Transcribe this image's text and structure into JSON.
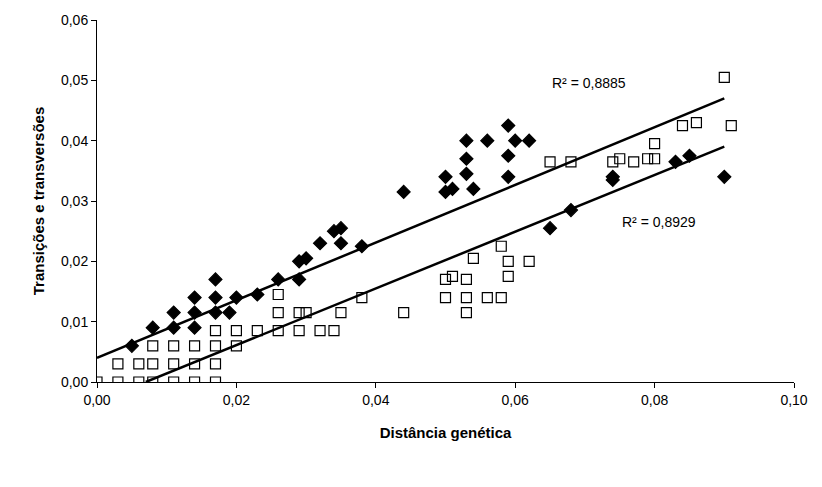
{
  "chart_data": {
    "type": "scatter",
    "x_label": "Distância genética",
    "y_label": "Transições e transversões",
    "xlim": [
      0,
      0.1
    ],
    "ylim": [
      0,
      0.06
    ],
    "xticks": [
      {
        "value": 0,
        "label": "0,00"
      },
      {
        "value": 0.02,
        "label": "0,02"
      },
      {
        "value": 0.04,
        "label": "0,04"
      },
      {
        "value": 0.06,
        "label": "0,06"
      },
      {
        "value": 0.08,
        "label": "0,08"
      },
      {
        "value": 0.1,
        "label": "0,10"
      }
    ],
    "yticks": [
      {
        "value": 0,
        "label": "0,00"
      },
      {
        "value": 0.01,
        "label": "0,01"
      },
      {
        "value": 0.02,
        "label": "0,02"
      },
      {
        "value": 0.03,
        "label": "0,03"
      },
      {
        "value": 0.04,
        "label": "0,04"
      },
      {
        "value": 0.05,
        "label": "0,05"
      },
      {
        "value": 0.06,
        "label": "0,06"
      }
    ],
    "grid": false,
    "series": [
      {
        "type": "scatter",
        "marker": "diamond",
        "color": "#000000",
        "x": [
          0.005,
          0.008,
          0.011,
          0.011,
          0.014,
          0.014,
          0.014,
          0.017,
          0.017,
          0.017,
          0.019,
          0.02,
          0.023,
          0.026,
          0.029,
          0.029,
          0.03,
          0.032,
          0.035,
          0.035,
          0.034,
          0.038,
          0.044,
          0.05,
          0.05,
          0.051,
          0.053,
          0.053,
          0.054,
          0.053,
          0.056,
          0.059,
          0.059,
          0.059,
          0.06,
          0.062,
          0.065,
          0.068,
          0.074,
          0.074,
          0.083,
          0.085,
          0.09
        ],
        "values": [
          0.006,
          0.009,
          0.009,
          0.0115,
          0.009,
          0.0115,
          0.014,
          0.0115,
          0.014,
          0.017,
          0.0115,
          0.014,
          0.0145,
          0.017,
          0.017,
          0.02,
          0.0205,
          0.023,
          0.023,
          0.0255,
          0.025,
          0.0225,
          0.0315,
          0.0315,
          0.034,
          0.032,
          0.0345,
          0.037,
          0.032,
          0.04,
          0.04,
          0.034,
          0.0375,
          0.0425,
          0.04,
          0.04,
          0.0255,
          0.0285,
          0.034,
          0.0335,
          0.0365,
          0.0375,
          0.034
        ]
      },
      {
        "type": "scatter",
        "marker": "square-open",
        "color": "#000000",
        "x": [
          0,
          0.003,
          0.003,
          0.006,
          0.006,
          0.008,
          0.008,
          0.008,
          0.011,
          0.011,
          0.011,
          0.014,
          0.014,
          0.014,
          0.017,
          0.017,
          0.017,
          0.017,
          0.02,
          0.02,
          0.023,
          0.026,
          0.026,
          0.026,
          0.029,
          0.029,
          0.03,
          0.032,
          0.034,
          0.035,
          0.038,
          0.044,
          0.05,
          0.05,
          0.051,
          0.053,
          0.053,
          0.053,
          0.054,
          0.056,
          0.058,
          0.058,
          0.059,
          0.059,
          0.062,
          0.065,
          0.068,
          0.074,
          0.075,
          0.077,
          0.079,
          0.08,
          0.08,
          0.084,
          0.086,
          0.09,
          0.091
        ],
        "values": [
          0,
          0,
          0.003,
          0,
          0.003,
          0,
          0.003,
          0.006,
          0,
          0.003,
          0.006,
          0,
          0.003,
          0.006,
          0,
          0.003,
          0.006,
          0.0085,
          0.006,
          0.0085,
          0.0085,
          0.0085,
          0.0115,
          0.0145,
          0.0085,
          0.0115,
          0.0115,
          0.0085,
          0.0085,
          0.0115,
          0.014,
          0.0115,
          0.014,
          0.017,
          0.0175,
          0.0115,
          0.014,
          0.017,
          0.0205,
          0.014,
          0.014,
          0.0225,
          0.02,
          0.0175,
          0.02,
          0.0365,
          0.0365,
          0.0365,
          0.037,
          0.0365,
          0.037,
          0.0395,
          0.037,
          0.0425,
          0.043,
          0.0505,
          0.0425
        ]
      },
      {
        "type": "line",
        "line_style": "solid",
        "color": "#000000",
        "x": [
          0,
          0.09
        ],
        "values": [
          0.004,
          0.047
        ]
      },
      {
        "type": "line",
        "line_style": "solid",
        "color": "#000000",
        "x": [
          0.007,
          0.09
        ],
        "values": [
          0,
          0.039
        ]
      }
    ],
    "annotations": [
      {
        "text": "R² = 0,8885",
        "x": 0.065,
        "y": 0.0495
      },
      {
        "text": "R² = 0,8929",
        "x": 0.075,
        "y": 0.0265
      }
    ]
  }
}
